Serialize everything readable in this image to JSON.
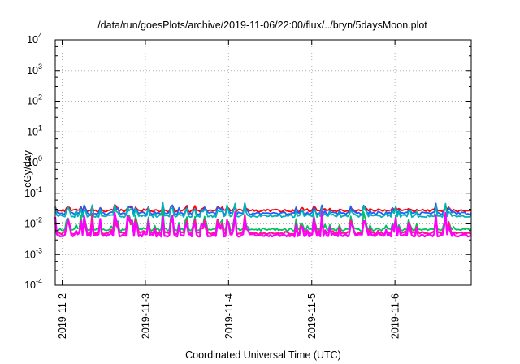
{
  "chart_data": {
    "type": "line",
    "title": "/data/run/goesPlots/archive/2019-11-06/22:00/flux/../bryn/5daysMoon.plot",
    "xlabel": "Coordinated Universal Time (UTC)",
    "ylabel": "cGy/day",
    "yscale": "log",
    "ylim": [
      0.0001,
      10000
    ],
    "yticks": [
      {
        "value": 0.0001,
        "base": "10",
        "exp": "-4"
      },
      {
        "value": 0.001,
        "base": "10",
        "exp": "-3"
      },
      {
        "value": 0.01,
        "base": "10",
        "exp": "-2"
      },
      {
        "value": 0.1,
        "base": "10",
        "exp": "-1"
      },
      {
        "value": 1,
        "base": "10",
        "exp": "0"
      },
      {
        "value": 10,
        "base": "10",
        "exp": "1"
      },
      {
        "value": 100,
        "base": "10",
        "exp": "2"
      },
      {
        "value": 1000,
        "base": "10",
        "exp": "3"
      },
      {
        "value": 10000,
        "base": "10",
        "exp": "4"
      }
    ],
    "xlim": [
      "2019-11-01T22:00",
      "2019-11-06T22:00"
    ],
    "xticks": [
      {
        "value": "2019-11-02T00:00",
        "label": "2019-11-2"
      },
      {
        "value": "2019-11-03T00:00",
        "label": "2019-11-3"
      },
      {
        "value": "2019-11-04T00:00",
        "label": "2019-11-4"
      },
      {
        "value": "2019-11-05T00:00",
        "label": "2019-11-5"
      },
      {
        "value": "2019-11-06T00:00",
        "label": "2019-11-6"
      }
    ],
    "grid": true,
    "legend": "none",
    "series": [
      {
        "color": "#ff0000",
        "baseline": 0.027,
        "peak": 0.06
      },
      {
        "color": "#1f5fff",
        "baseline": 0.022,
        "peak": 0.1
      },
      {
        "color": "#00b4b4",
        "baseline": 0.018,
        "peak": 0.05
      },
      {
        "color": "#00c060",
        "baseline": 0.0065,
        "peak": 0.03
      },
      {
        "color": "#ff1493",
        "baseline": 0.005,
        "peak": 0.025
      },
      {
        "color": "#ff00ff",
        "baseline": 0.0042,
        "peak": 0.03
      }
    ]
  }
}
